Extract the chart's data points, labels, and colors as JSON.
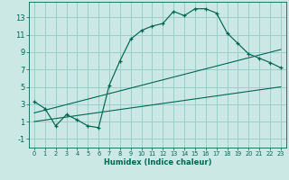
{
  "xlabel": "Humidex (Indice chaleur)",
  "background_color": "#cce8e4",
  "grid_color": "#99d0c8",
  "line_color": "#006655",
  "xlim": [
    -0.5,
    23.5
  ],
  "ylim": [
    -2.0,
    14.8
  ],
  "yticks": [
    -1,
    1,
    3,
    5,
    7,
    9,
    11,
    13
  ],
  "xticks": [
    0,
    1,
    2,
    3,
    4,
    5,
    6,
    7,
    8,
    9,
    10,
    11,
    12,
    13,
    14,
    15,
    16,
    17,
    18,
    19,
    20,
    21,
    22,
    23
  ],
  "main_x": [
    0,
    1,
    2,
    3,
    4,
    5,
    6,
    7,
    8,
    9,
    10,
    11,
    12,
    13,
    14,
    15,
    16,
    17,
    18,
    19,
    20,
    21,
    22,
    23
  ],
  "main_y": [
    3.3,
    2.5,
    0.5,
    1.8,
    1.2,
    0.5,
    0.3,
    5.2,
    8.0,
    10.5,
    11.5,
    12.0,
    12.3,
    13.7,
    13.2,
    14.0,
    14.0,
    13.5,
    11.2,
    10.0,
    8.8,
    8.3,
    7.8,
    7.2
  ],
  "line1_x": [
    0,
    23
  ],
  "line1_y": [
    2.0,
    9.3
  ],
  "line2_x": [
    0,
    23
  ],
  "line2_y": [
    1.0,
    5.0
  ]
}
